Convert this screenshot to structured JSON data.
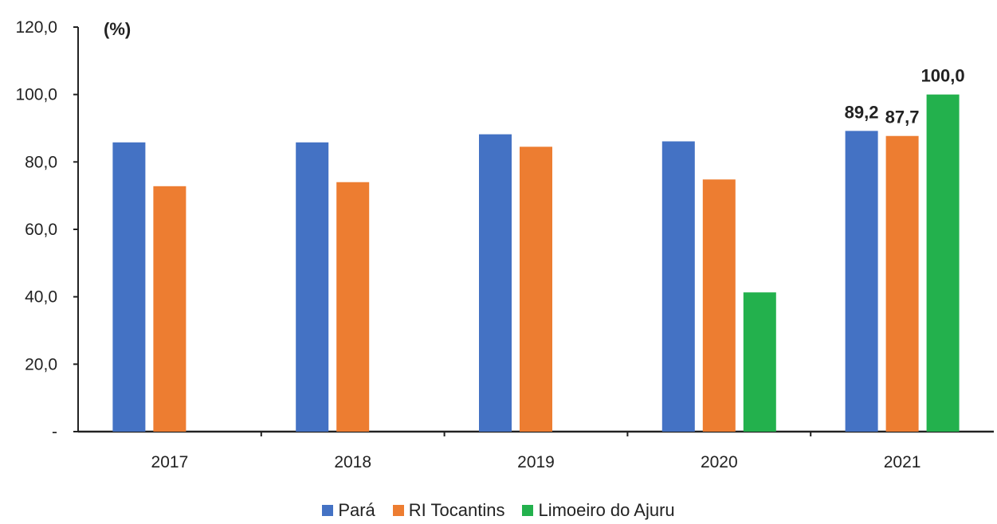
{
  "chart_data": {
    "type": "bar",
    "unit_label": "(%)",
    "categories": [
      "2017",
      "2018",
      "2019",
      "2020",
      "2021"
    ],
    "series": [
      {
        "name": "Pará",
        "color": "#4472c4",
        "values": [
          85.8,
          85.8,
          88.2,
          86.1,
          89.2
        ],
        "labels": [
          null,
          null,
          null,
          null,
          "89,2"
        ]
      },
      {
        "name": "RI Tocantins",
        "color": "#ed7d31",
        "values": [
          72.8,
          74.0,
          84.5,
          74.8,
          87.7
        ],
        "labels": [
          null,
          null,
          null,
          null,
          "87,7"
        ]
      },
      {
        "name": "Limoeiro do Ajuru",
        "color": "#23b14d",
        "values": [
          null,
          null,
          null,
          41.3,
          100.0
        ],
        "labels": [
          null,
          null,
          null,
          null,
          "100,0"
        ]
      }
    ],
    "ylim": [
      0,
      120
    ],
    "y_ticks": [
      {
        "value": 0,
        "label": "-"
      },
      {
        "value": 20,
        "label": "20,0"
      },
      {
        "value": 40,
        "label": "40,0"
      },
      {
        "value": 60,
        "label": "60,0"
      },
      {
        "value": 80,
        "label": "80,0"
      },
      {
        "value": 100,
        "label": "100,0"
      },
      {
        "value": 120,
        "label": "120,0"
      }
    ],
    "grid": false,
    "legend_position": "bottom"
  }
}
